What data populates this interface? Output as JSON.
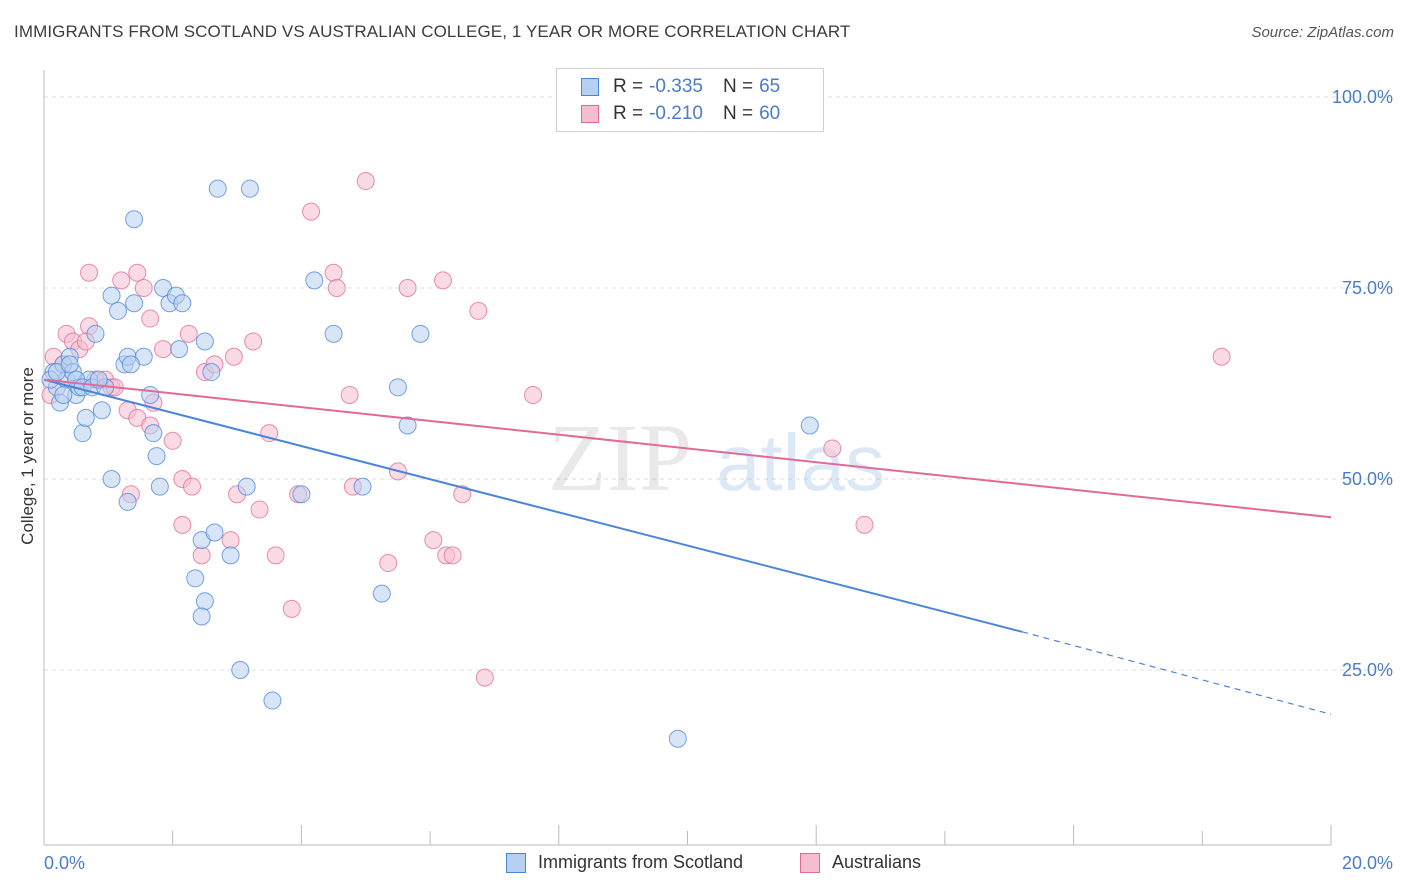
{
  "title": "IMMIGRANTS FROM SCOTLAND VS AUSTRALIAN COLLEGE, 1 YEAR OR MORE CORRELATION CHART",
  "source": "Source: ZipAtlas.com",
  "legend": {
    "rows": [
      {
        "r_label": "R =",
        "r_value": "-0.335",
        "n_label": "N =",
        "n_value": "65"
      },
      {
        "r_label": "R =",
        "r_value": "-0.210",
        "n_label": "N =",
        "n_value": "60"
      }
    ]
  },
  "watermark": {
    "zip": "ZIP",
    "atlas": "atlas"
  },
  "colors": {
    "blue": "#4a86d8",
    "blue_fill": "#b8d0f0",
    "pink": "#e26a96",
    "pink_fill": "#f5bdd0",
    "axis_text": "#4a7cc9"
  },
  "chart_data": {
    "type": "scatter",
    "ylabel": "College, 1 year or more",
    "xlabel": "",
    "xlim": [
      0,
      20
    ],
    "ylim": [
      0,
      105
    ],
    "x_tick_labels": [
      "0.0%",
      "20.0%"
    ],
    "y_tick_labels": [
      "100.0%",
      "75.0%",
      "50.0%",
      "25.0%"
    ],
    "y_ticks": [
      100,
      75,
      50,
      25
    ],
    "grid": true,
    "legend_position": "bottom",
    "series": [
      {
        "name": "Immigrants from Scotland",
        "color": "#4a86d8",
        "trend": {
          "x0": 0,
          "y0": 63.0,
          "x1": 15.2,
          "y1": 30.0,
          "dash_to_x": 20,
          "dash_to_y": 19.2
        },
        "points": [
          [
            0.15,
            64
          ],
          [
            0.2,
            62
          ],
          [
            0.25,
            60
          ],
          [
            0.3,
            65
          ],
          [
            0.35,
            63
          ],
          [
            0.4,
            66
          ],
          [
            0.45,
            64
          ],
          [
            0.5,
            61
          ],
          [
            0.55,
            62
          ],
          [
            0.6,
            56
          ],
          [
            0.65,
            58
          ],
          [
            0.7,
            63
          ],
          [
            0.8,
            69
          ],
          [
            0.9,
            59
          ],
          [
            1.05,
            74
          ],
          [
            1.15,
            72
          ],
          [
            1.25,
            65
          ],
          [
            1.3,
            66
          ],
          [
            1.4,
            73
          ],
          [
            1.55,
            66
          ],
          [
            1.65,
            61
          ],
          [
            1.7,
            56
          ],
          [
            1.75,
            53
          ],
          [
            1.85,
            75
          ],
          [
            1.95,
            73
          ],
          [
            2.05,
            74
          ],
          [
            2.1,
            67
          ],
          [
            2.15,
            73
          ],
          [
            1.4,
            84
          ],
          [
            2.7,
            88
          ],
          [
            3.2,
            88
          ],
          [
            2.5,
            68
          ],
          [
            2.6,
            64
          ],
          [
            2.45,
            42
          ],
          [
            2.35,
            37
          ],
          [
            2.5,
            34
          ],
          [
            2.45,
            32
          ],
          [
            2.65,
            43
          ],
          [
            2.9,
            40
          ],
          [
            3.15,
            49
          ],
          [
            3.05,
            25
          ],
          [
            3.55,
            21
          ],
          [
            4.0,
            48
          ],
          [
            4.2,
            76
          ],
          [
            4.5,
            69
          ],
          [
            4.95,
            49
          ],
          [
            5.25,
            35
          ],
          [
            5.5,
            62
          ],
          [
            5.65,
            57
          ],
          [
            5.85,
            69
          ],
          [
            1.05,
            50
          ],
          [
            1.3,
            47
          ],
          [
            1.8,
            49
          ],
          [
            9.85,
            16
          ],
          [
            11.9,
            57
          ],
          [
            0.1,
            63
          ],
          [
            0.2,
            64
          ],
          [
            0.3,
            61
          ],
          [
            0.4,
            65
          ],
          [
            0.5,
            63
          ],
          [
            0.6,
            62
          ],
          [
            0.75,
            62
          ],
          [
            0.95,
            62
          ],
          [
            1.35,
            65
          ],
          [
            0.85,
            63
          ]
        ]
      },
      {
        "name": "Australians",
        "color": "#e26a96",
        "trend": {
          "x0": 0,
          "y0": 63.0,
          "x1": 20,
          "y1": 45.0
        },
        "points": [
          [
            0.1,
            61
          ],
          [
            0.15,
            66
          ],
          [
            0.3,
            65
          ],
          [
            0.35,
            69
          ],
          [
            0.45,
            68
          ],
          [
            0.55,
            67
          ],
          [
            0.7,
            70
          ],
          [
            0.8,
            63
          ],
          [
            0.95,
            63
          ],
          [
            1.05,
            62
          ],
          [
            1.1,
            62
          ],
          [
            0.7,
            77
          ],
          [
            1.2,
            76
          ],
          [
            1.45,
            77
          ],
          [
            1.55,
            75
          ],
          [
            1.65,
            71
          ],
          [
            1.85,
            67
          ],
          [
            2.25,
            69
          ],
          [
            2.5,
            64
          ],
          [
            2.65,
            65
          ],
          [
            2.95,
            66
          ],
          [
            3.25,
            68
          ],
          [
            1.3,
            59
          ],
          [
            1.45,
            58
          ],
          [
            1.65,
            57
          ],
          [
            2.15,
            50
          ],
          [
            2.3,
            49
          ],
          [
            2.15,
            44
          ],
          [
            2.45,
            40
          ],
          [
            2.9,
            42
          ],
          [
            3.0,
            48
          ],
          [
            3.35,
            46
          ],
          [
            3.5,
            56
          ],
          [
            3.6,
            40
          ],
          [
            3.85,
            33
          ],
          [
            3.95,
            48
          ],
          [
            4.5,
            77
          ],
          [
            4.55,
            75
          ],
          [
            4.15,
            85
          ],
          [
            4.75,
            61
          ],
          [
            4.8,
            49
          ],
          [
            5.0,
            89
          ],
          [
            5.35,
            39
          ],
          [
            5.5,
            51
          ],
          [
            5.65,
            75
          ],
          [
            6.05,
            42
          ],
          [
            6.25,
            40
          ],
          [
            6.35,
            40
          ],
          [
            6.5,
            48
          ],
          [
            6.75,
            72
          ],
          [
            6.85,
            24
          ],
          [
            7.6,
            61
          ],
          [
            12.25,
            54
          ],
          [
            12.75,
            44
          ],
          [
            18.3,
            66
          ],
          [
            6.2,
            76
          ],
          [
            1.7,
            60
          ],
          [
            1.35,
            48
          ],
          [
            0.65,
            68
          ],
          [
            2.0,
            55
          ]
        ]
      }
    ]
  },
  "bottom_legend": [
    {
      "label": "Immigrants from Scotland"
    },
    {
      "label": "Australians"
    }
  ]
}
